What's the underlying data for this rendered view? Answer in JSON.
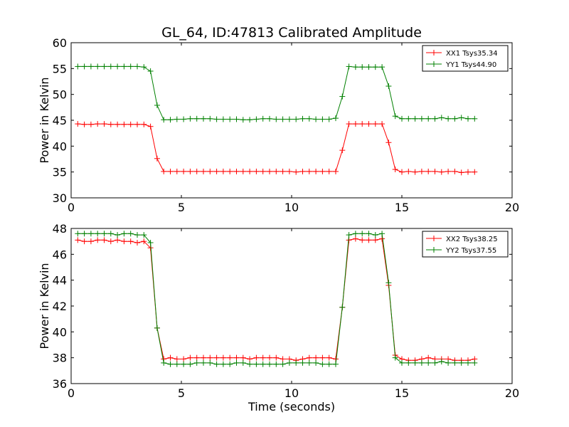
{
  "chart_data": [
    {
      "type": "line",
      "title": "GL_64, ID:47813 Calibrated Amplitude",
      "xlabel": "",
      "ylabel": "Power in Kelvin",
      "xlim": [
        0,
        20
      ],
      "ylim": [
        30,
        60
      ],
      "xticks": [
        "0",
        "5",
        "10",
        "15",
        "20"
      ],
      "yticks": [
        "30",
        "35",
        "40",
        "45",
        "50",
        "55",
        "60"
      ],
      "legend_position": "top-right",
      "x": [
        0.3,
        0.6,
        0.9,
        1.2,
        1.5,
        1.8,
        2.1,
        2.4,
        2.7,
        3.0,
        3.3,
        3.6,
        3.9,
        4.2,
        4.5,
        4.8,
        5.1,
        5.4,
        5.7,
        6.0,
        6.3,
        6.6,
        6.9,
        7.2,
        7.5,
        7.8,
        8.1,
        8.4,
        8.7,
        9.0,
        9.3,
        9.6,
        9.9,
        10.2,
        10.5,
        10.8,
        11.1,
        11.4,
        11.7,
        12.0,
        12.3,
        12.6,
        12.9,
        13.2,
        13.5,
        13.8,
        14.1,
        14.4,
        14.7,
        15.0,
        15.3,
        15.6,
        15.9,
        16.2,
        16.5,
        16.8,
        17.1,
        17.4,
        17.7,
        18.0,
        18.3
      ],
      "series": [
        {
          "name": "XX1 Tsys35.34",
          "color": "#ff0000",
          "values": [
            44.3,
            44.2,
            44.2,
            44.3,
            44.3,
            44.2,
            44.2,
            44.2,
            44.2,
            44.2,
            44.2,
            43.8,
            37.6,
            35.1,
            35.1,
            35.1,
            35.1,
            35.1,
            35.1,
            35.1,
            35.1,
            35.1,
            35.1,
            35.1,
            35.1,
            35.1,
            35.1,
            35.1,
            35.1,
            35.1,
            35.1,
            35.1,
            35.1,
            35.0,
            35.1,
            35.1,
            35.1,
            35.1,
            35.1,
            35.1,
            39.2,
            44.3,
            44.3,
            44.3,
            44.3,
            44.3,
            44.3,
            40.7,
            35.5,
            35.0,
            35.1,
            35.0,
            35.1,
            35.1,
            35.1,
            35.0,
            35.1,
            35.1,
            34.9,
            35.0,
            35.0
          ]
        },
        {
          "name": "YY1 Tsys44.90",
          "color": "#008000",
          "values": [
            55.4,
            55.4,
            55.4,
            55.4,
            55.4,
            55.4,
            55.4,
            55.4,
            55.4,
            55.4,
            55.3,
            54.5,
            47.9,
            45.1,
            45.1,
            45.2,
            45.2,
            45.3,
            45.3,
            45.3,
            45.3,
            45.2,
            45.2,
            45.2,
            45.2,
            45.1,
            45.1,
            45.2,
            45.3,
            45.3,
            45.2,
            45.2,
            45.2,
            45.2,
            45.3,
            45.3,
            45.2,
            45.2,
            45.2,
            45.4,
            49.6,
            55.4,
            55.3,
            55.3,
            55.3,
            55.3,
            55.3,
            51.6,
            45.8,
            45.3,
            45.3,
            45.3,
            45.3,
            45.3,
            45.3,
            45.5,
            45.3,
            45.3,
            45.5,
            45.3,
            45.3
          ]
        }
      ]
    },
    {
      "type": "line",
      "title": "",
      "xlabel": "Time (seconds)",
      "ylabel": "Power in Kelvin",
      "xlim": [
        0,
        20
      ],
      "ylim": [
        36,
        48
      ],
      "xticks": [
        "0",
        "5",
        "10",
        "15",
        "20"
      ],
      "yticks": [
        "36",
        "38",
        "40",
        "42",
        "44",
        "46",
        "48"
      ],
      "legend_position": "top-right",
      "x": [
        0.3,
        0.6,
        0.9,
        1.2,
        1.5,
        1.8,
        2.1,
        2.4,
        2.7,
        3.0,
        3.3,
        3.6,
        3.9,
        4.2,
        4.5,
        4.8,
        5.1,
        5.4,
        5.7,
        6.0,
        6.3,
        6.6,
        6.9,
        7.2,
        7.5,
        7.8,
        8.1,
        8.4,
        8.7,
        9.0,
        9.3,
        9.6,
        9.9,
        10.2,
        10.5,
        10.8,
        11.1,
        11.4,
        11.7,
        12.0,
        12.3,
        12.6,
        12.9,
        13.2,
        13.5,
        13.8,
        14.1,
        14.4,
        14.7,
        15.0,
        15.3,
        15.6,
        15.9,
        16.2,
        16.5,
        16.8,
        17.1,
        17.4,
        17.7,
        18.0,
        18.3
      ],
      "series": [
        {
          "name": "XX2 Tsys38.25",
          "color": "#ff0000",
          "values": [
            47.1,
            47.0,
            47.0,
            47.1,
            47.1,
            47.0,
            47.1,
            47.0,
            47.0,
            46.9,
            47.0,
            46.5,
            40.3,
            37.9,
            38.0,
            37.9,
            37.9,
            38.0,
            38.0,
            38.0,
            38.0,
            38.0,
            38.0,
            38.0,
            38.0,
            38.0,
            37.9,
            38.0,
            38.0,
            38.0,
            38.0,
            37.9,
            37.9,
            37.8,
            37.9,
            38.0,
            38.0,
            38.0,
            38.0,
            37.9,
            41.9,
            47.1,
            47.2,
            47.1,
            47.1,
            47.1,
            47.2,
            43.6,
            38.2,
            37.9,
            37.8,
            37.8,
            37.9,
            38.0,
            37.9,
            37.9,
            37.9,
            37.8,
            37.8,
            37.8,
            37.9
          ]
        },
        {
          "name": "YY2 Tsys37.55",
          "color": "#008000",
          "values": [
            47.6,
            47.6,
            47.6,
            47.6,
            47.6,
            47.6,
            47.5,
            47.6,
            47.6,
            47.5,
            47.5,
            46.9,
            40.3,
            37.6,
            37.5,
            37.5,
            37.5,
            37.5,
            37.6,
            37.6,
            37.6,
            37.5,
            37.5,
            37.5,
            37.6,
            37.6,
            37.5,
            37.5,
            37.5,
            37.5,
            37.5,
            37.5,
            37.6,
            37.6,
            37.6,
            37.6,
            37.6,
            37.5,
            37.5,
            37.5,
            41.9,
            47.5,
            47.6,
            47.6,
            47.6,
            47.5,
            47.6,
            43.8,
            38.0,
            37.6,
            37.6,
            37.6,
            37.6,
            37.6,
            37.6,
            37.7,
            37.6,
            37.6,
            37.6,
            37.6,
            37.6
          ]
        }
      ]
    }
  ]
}
